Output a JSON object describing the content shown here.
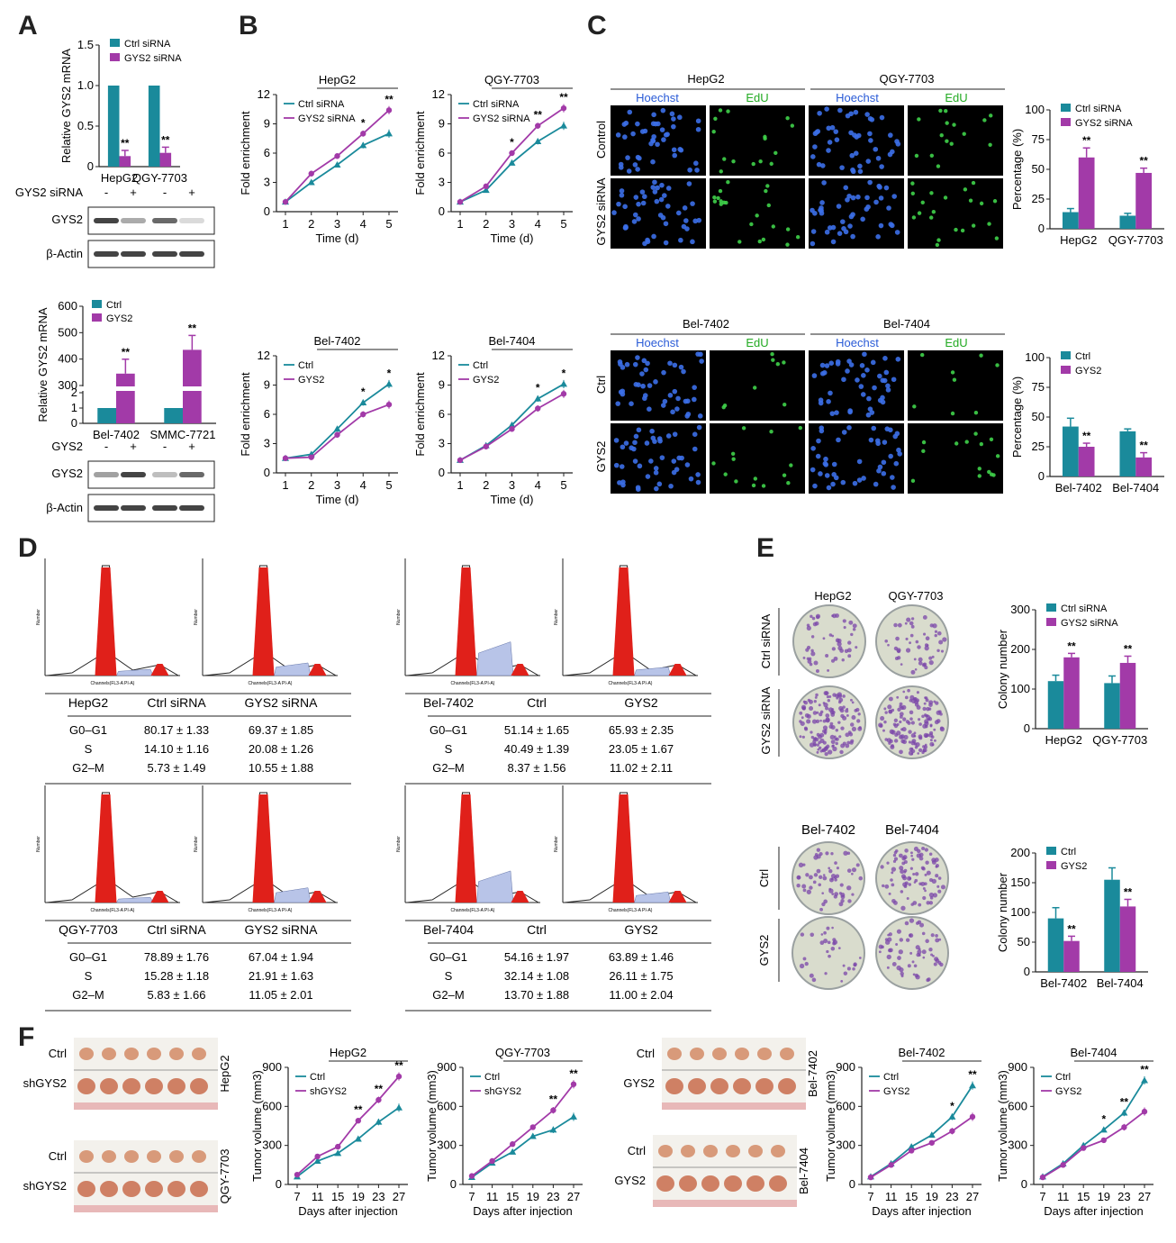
{
  "panels": {
    "A": "A",
    "B": "B",
    "C": "C",
    "D": "D",
    "E": "E",
    "F": "F"
  },
  "colors": {
    "teal": "#1a8a9b",
    "purple": "#a23aa8",
    "red": "#e0201a",
    "blot": "#444444"
  },
  "legend": {
    "ctrl_sirna": "Ctrl siRNA",
    "gys2_sirna": "GYS2 siRNA",
    "ctrl": "Ctrl",
    "gys2": "GYS2",
    "shgys2": "shGYS2"
  },
  "blot_labels": {
    "gys2_sirna_row": "GYS2 siRNA",
    "gys2_row": "GYS2",
    "gys2": "GYS2",
    "actin": "β-Actin",
    "minus": "-",
    "plus": "+"
  },
  "images": {
    "hoechst": "Hoechst",
    "edu": "EdU",
    "control": "Control",
    "gys2_sirna": "GYS2 siRNA",
    "ctrl": "Ctrl",
    "gys2": "GYS2"
  },
  "sig": {
    "one": "*",
    "two": "**"
  },
  "flow_labels": {
    "x": "Channels(FL3-A PI-A)",
    "y": "Number"
  },
  "tables": [
    {
      "head": [
        "HepG2",
        "Ctrl siRNA",
        "GYS2 siRNA"
      ],
      "rows": [
        [
          "G0–G1",
          "80.17 ± 1.33",
          "69.37 ± 1.85"
        ],
        [
          "S",
          "14.10 ± 1.16",
          "20.08 ± 1.26"
        ],
        [
          "G2–M",
          "5.73 ± 1.49",
          "10.55 ± 1.88"
        ]
      ]
    },
    {
      "head": [
        "Bel-7402",
        "Ctrl",
        "GYS2"
      ],
      "rows": [
        [
          "G0–G1",
          "51.14 ± 1.65",
          "65.93 ± 2.35"
        ],
        [
          "S",
          "40.49 ± 1.39",
          "23.05 ± 1.67"
        ],
        [
          "G2–M",
          "8.37 ± 1.56",
          "11.02 ± 2.11"
        ]
      ]
    },
    {
      "head": [
        "QGY-7703",
        "Ctrl siRNA",
        "GYS2 siRNA"
      ],
      "rows": [
        [
          "G0–G1",
          "78.89 ± 1.76",
          "67.04 ± 1.94"
        ],
        [
          "S",
          "15.28 ± 1.18",
          "21.91 ± 1.63"
        ],
        [
          "G2–M",
          "5.83 ± 1.66",
          "11.05 ± 2.01"
        ]
      ]
    },
    {
      "head": [
        "Bel-7404",
        "Ctrl",
        "GYS2"
      ],
      "rows": [
        [
          "G0–G1",
          "54.16 ± 1.97",
          "63.89 ± 1.46"
        ],
        [
          "S",
          "32.14 ± 1.08",
          "26.11 ± 1.75"
        ],
        [
          "G2–M",
          "13.70 ± 1.88",
          "11.00 ± 2.04"
        ]
      ]
    }
  ],
  "chart_data": [
    {
      "id": "A1",
      "type": "bar",
      "categories": [
        "HepG2",
        "QGY-7703"
      ],
      "series": [
        {
          "name": "Ctrl siRNA",
          "values": [
            1.0,
            1.0
          ],
          "err": [
            0,
            0
          ]
        },
        {
          "name": "GYS2 siRNA",
          "values": [
            0.13,
            0.17
          ],
          "err": [
            0.07,
            0.07
          ]
        }
      ],
      "sig": [
        "**",
        "**"
      ],
      "ylabel": "Relative GYS2 mRNA",
      "ylim": [
        0,
        1.5
      ],
      "ticks": [
        0,
        0.5,
        1.0,
        1.5
      ],
      "tick_labels": [
        "0",
        "0.5",
        "1.0",
        "1.5"
      ]
    },
    {
      "id": "A2",
      "type": "bar",
      "categories": [
        "Bel-7402",
        "SMMC-7721"
      ],
      "series": [
        {
          "name": "Ctrl",
          "values": [
            1,
            1
          ]
        },
        {
          "name": "GYS2",
          "values": [
            345,
            435
          ]
        }
      ],
      "sig": [
        "**",
        "**"
      ],
      "ylabel": "Relative GYS2 mRNA",
      "tick_labels": [
        "0",
        "1",
        "2",
        "300",
        "400",
        "500",
        "600"
      ]
    },
    {
      "id": "B1",
      "type": "line",
      "title": "HepG2",
      "x": [
        1,
        2,
        3,
        4,
        5
      ],
      "series": [
        {
          "name": "Ctrl siRNA",
          "values": [
            1,
            3,
            4.8,
            6.8,
            8.0
          ]
        },
        {
          "name": "GYS2 siRNA",
          "values": [
            1,
            3.9,
            5.7,
            8.0,
            10.4
          ]
        }
      ],
      "sig": [
        "",
        "",
        "",
        "*",
        "**"
      ],
      "xlabel": "Time (d)",
      "ylabel": "Fold enrichment",
      "ylim": [
        0,
        12
      ],
      "yticks": [
        0,
        3,
        6,
        9,
        12
      ]
    },
    {
      "id": "B2",
      "type": "line",
      "title": "QGY-7703",
      "x": [
        1,
        2,
        3,
        4,
        5
      ],
      "series": [
        {
          "name": "Ctrl siRNA",
          "values": [
            1,
            2.2,
            5.0,
            7.2,
            8.8
          ]
        },
        {
          "name": "GYS2 siRNA",
          "values": [
            1,
            2.6,
            6.0,
            8.8,
            10.6
          ]
        }
      ],
      "sig": [
        "",
        "",
        "*",
        "**",
        "**"
      ],
      "xlabel": "Time (d)",
      "ylabel": "Fold enrichment",
      "ylim": [
        0,
        12
      ],
      "yticks": [
        0,
        3,
        6,
        9,
        12
      ]
    },
    {
      "id": "B3",
      "type": "line",
      "title": "Bel-7402",
      "x": [
        1,
        2,
        3,
        4,
        5
      ],
      "series": [
        {
          "name": "Ctrl",
          "values": [
            1.5,
            1.9,
            4.5,
            7.2,
            9.1
          ]
        },
        {
          "name": "GYS2",
          "values": [
            1.5,
            1.6,
            3.9,
            6.0,
            7.0
          ]
        }
      ],
      "sig": [
        "",
        "",
        "",
        "*",
        "*"
      ],
      "xlabel": "Time (d)",
      "ylabel": "Fold enrichment",
      "ylim": [
        0,
        12
      ],
      "yticks": [
        0,
        3,
        6,
        9,
        12
      ]
    },
    {
      "id": "B4",
      "type": "line",
      "title": "Bel-7404",
      "x": [
        1,
        2,
        3,
        4,
        5
      ],
      "series": [
        {
          "name": "Ctrl",
          "values": [
            1.3,
            2.8,
            4.9,
            7.6,
            9.1
          ]
        },
        {
          "name": "GYS2",
          "values": [
            1.3,
            2.7,
            4.5,
            6.6,
            8.1
          ]
        }
      ],
      "sig": [
        "",
        "",
        "",
        "*",
        "*"
      ],
      "xlabel": "Time (d)",
      "ylabel": "Fold enrichment",
      "ylim": [
        0,
        12
      ],
      "yticks": [
        0,
        3,
        6,
        9,
        12
      ]
    },
    {
      "id": "C1",
      "type": "bar",
      "categories": [
        "HepG2",
        "QGY-7703"
      ],
      "series": [
        {
          "name": "Ctrl siRNA",
          "values": [
            14,
            11
          ],
          "err": [
            3,
            2
          ]
        },
        {
          "name": "GYS2 siRNA",
          "values": [
            60,
            47
          ],
          "err": [
            8,
            4
          ]
        }
      ],
      "sig": [
        "**",
        "**"
      ],
      "ylabel": "Percentage (%)",
      "ylim": [
        0,
        100
      ],
      "ticks": [
        0,
        25,
        50,
        75,
        100
      ]
    },
    {
      "id": "C2",
      "type": "bar",
      "categories": [
        "Bel-7402",
        "Bel-7404"
      ],
      "series": [
        {
          "name": "Ctrl",
          "values": [
            42,
            38
          ],
          "err": [
            7,
            2
          ]
        },
        {
          "name": "GYS2",
          "values": [
            25,
            16
          ],
          "err": [
            3,
            4
          ]
        }
      ],
      "sig": [
        "**",
        "**"
      ],
      "ylabel": "Percentage (%)",
      "ylim": [
        0,
        100
      ],
      "ticks": [
        0,
        25,
        50,
        75,
        100
      ]
    },
    {
      "id": "E1",
      "type": "bar",
      "categories": [
        "HepG2",
        "QGY-7703"
      ],
      "series": [
        {
          "name": "Ctrl siRNA",
          "values": [
            120,
            115
          ],
          "err": [
            15,
            18
          ]
        },
        {
          "name": "GYS2 siRNA",
          "values": [
            180,
            166
          ],
          "err": [
            10,
            17
          ]
        }
      ],
      "sig": [
        "**",
        "**"
      ],
      "ylabel": "Colony number",
      "ylim": [
        0,
        300
      ],
      "ticks": [
        0,
        100,
        200,
        300
      ]
    },
    {
      "id": "E2",
      "type": "bar",
      "categories": [
        "Bel-7402",
        "Bel-7404"
      ],
      "series": [
        {
          "name": "Ctrl",
          "values": [
            90,
            155
          ],
          "err": [
            18,
            20
          ]
        },
        {
          "name": "GYS2",
          "values": [
            52,
            110
          ],
          "err": [
            8,
            12
          ]
        }
      ],
      "sig": [
        "**",
        "**"
      ],
      "ylabel": "Colony number",
      "ylim": [
        0,
        200
      ],
      "ticks": [
        0,
        50,
        100,
        150,
        200
      ]
    },
    {
      "id": "F1",
      "type": "line",
      "title": "HepG2",
      "x": [
        7,
        11,
        15,
        19,
        23,
        27
      ],
      "series": [
        {
          "name": "Ctrl",
          "values": [
            60,
            180,
            240,
            350,
            480,
            590
          ]
        },
        {
          "name": "shGYS2",
          "values": [
            75,
            215,
            290,
            490,
            650,
            830
          ]
        }
      ],
      "sig": [
        "",
        "",
        "",
        "**",
        "**",
        "**"
      ],
      "xlabel": "Days after injection",
      "ylabel": "Tumor volume (mm3)",
      "ylim": [
        0,
        900
      ],
      "yticks": [
        0,
        300,
        600,
        900
      ]
    },
    {
      "id": "F2",
      "type": "line",
      "title": "QGY-7703",
      "x": [
        7,
        11,
        15,
        19,
        23,
        27
      ],
      "series": [
        {
          "name": "Ctrl",
          "values": [
            55,
            165,
            250,
            370,
            420,
            520
          ]
        },
        {
          "name": "shGYS2",
          "values": [
            65,
            180,
            310,
            440,
            570,
            770
          ]
        }
      ],
      "sig": [
        "",
        "",
        "",
        "",
        "**",
        "**"
      ],
      "xlabel": "Days after injection",
      "ylabel": "Tumor volume (mm3)",
      "ylim": [
        0,
        900
      ],
      "yticks": [
        0,
        300,
        600,
        900
      ]
    },
    {
      "id": "F3",
      "type": "line",
      "title": "Bel-7402",
      "x": [
        7,
        11,
        15,
        19,
        23,
        27
      ],
      "series": [
        {
          "name": "Ctrl",
          "values": [
            60,
            160,
            290,
            380,
            520,
            760
          ]
        },
        {
          "name": "GYS2",
          "values": [
            55,
            150,
            260,
            320,
            410,
            520
          ]
        }
      ],
      "sig": [
        "",
        "",
        "",
        "",
        "*",
        "**"
      ],
      "xlabel": "Days after injection",
      "ylabel": "Tumor volume (mm3)",
      "ylim": [
        0,
        900
      ],
      "yticks": [
        0,
        300,
        600,
        900
      ]
    },
    {
      "id": "F4",
      "type": "line",
      "title": "Bel-7404",
      "x": [
        7,
        11,
        15,
        19,
        23,
        27
      ],
      "series": [
        {
          "name": "Ctrl",
          "values": [
            60,
            160,
            300,
            420,
            550,
            800
          ]
        },
        {
          "name": "GYS2",
          "values": [
            55,
            150,
            280,
            340,
            440,
            560
          ]
        }
      ],
      "sig": [
        "",
        "",
        "",
        "*",
        "**",
        "**"
      ],
      "xlabel": "Days after injection",
      "ylabel": "Tumor volume (mm3)",
      "ylim": [
        0,
        900
      ],
      "yticks": [
        0,
        300,
        600,
        900
      ]
    }
  ]
}
